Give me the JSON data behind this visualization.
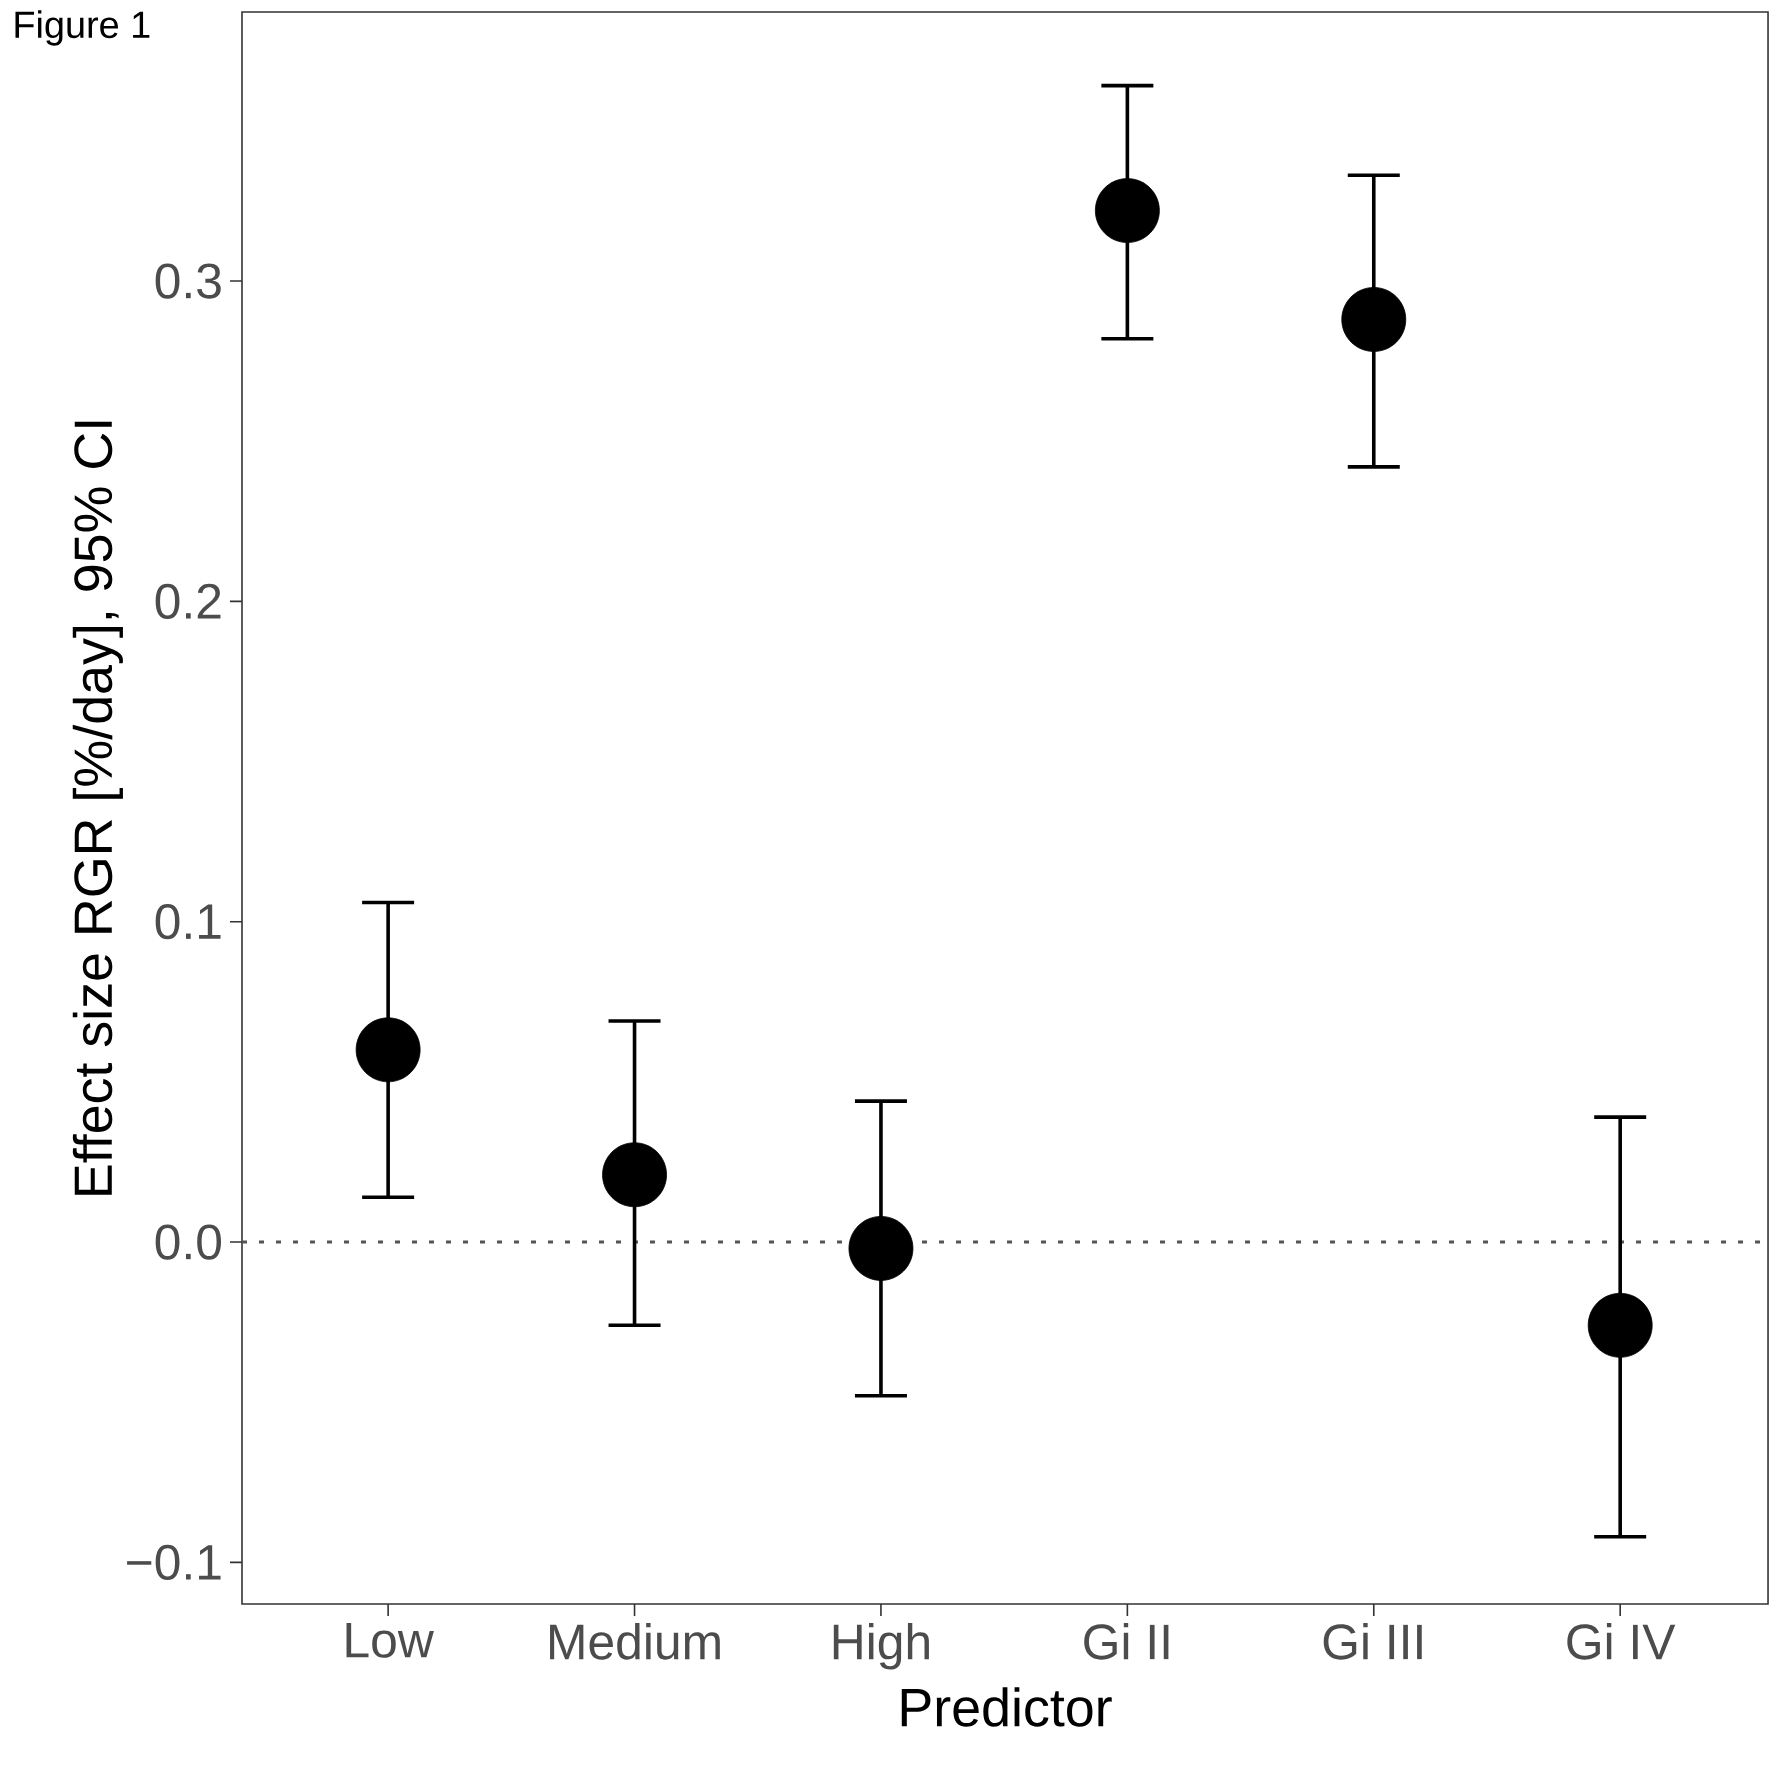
{
  "chart_data": {
    "type": "scatter",
    "xlabel": "Predictor",
    "ylabel": "Effect size RGR [%/day], 95% CI",
    "annotations": [
      "Figure 1"
    ],
    "categories": [
      "Low",
      "Medium",
      "High",
      "Gi II",
      "Gi III",
      "Gi IV"
    ],
    "series": [
      {
        "color": "#000000",
        "values": [
          0.06,
          0.021,
          -0.002,
          0.322,
          0.288,
          -0.026
        ],
        "errors": [
          [
            0.014,
            0.106
          ],
          [
            -0.026,
            0.069
          ],
          [
            -0.048,
            0.044
          ],
          [
            0.282,
            0.361
          ],
          [
            0.242,
            0.333
          ],
          [
            -0.092,
            0.039
          ]
        ]
      }
    ],
    "ylim": [
      -0.113,
      0.384
    ],
    "yticks": [
      {
        "value": -0.1,
        "label": "−0.1"
      },
      {
        "value": 0,
        "label": "0.0"
      },
      {
        "value": 0.1,
        "label": "0.1"
      },
      {
        "value": 0.2,
        "label": "0.2"
      },
      {
        "value": 0.3,
        "label": "0.3"
      }
    ],
    "ref_lines": [
      {
        "axis": "y",
        "value": 0,
        "line_style": "dotted",
        "color": "#555555"
      }
    ],
    "marker": "circle",
    "grid": false
  }
}
